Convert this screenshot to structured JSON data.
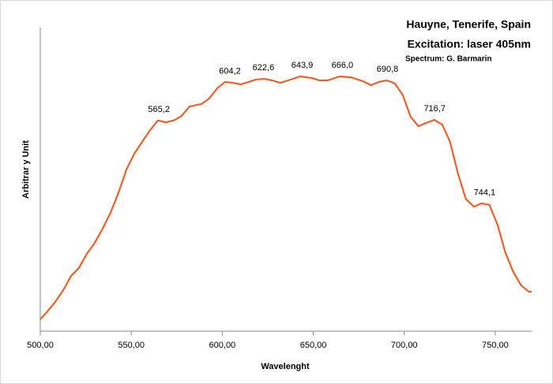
{
  "chart_data": {
    "type": "line",
    "title": "Hauyne, Tenerife, Spain",
    "subtitle": "Excitation: laser 405nm",
    "credit": "Spectrum:  G. Barmarin",
    "xlabel": "Wavelenght",
    "ylabel": "Arbitrar y Unit",
    "color": "#e8622a",
    "x": [
      500,
      503.9,
      508.2,
      512.6,
      516.9,
      521.2,
      525.6,
      529.9,
      534.3,
      538.6,
      542.9,
      547.3,
      551.6,
      555.9,
      560.3,
      564.6,
      568.9,
      573.3,
      577.6,
      582.0,
      588.5,
      592.8,
      597.2,
      601.5,
      605.8,
      610.2,
      614.5,
      618.8,
      623.2,
      627.5,
      631.9,
      636.2,
      642.7,
      649.2,
      653.5,
      657.9,
      664.4,
      670.9,
      677.4,
      681.7,
      686.1,
      690.4,
      694.8,
      699.1,
      703.5,
      707.8,
      712.1,
      716.5,
      720.8,
      725.2,
      729.5,
      733.8,
      738.2,
      742.5,
      746.8,
      751.2,
      755.5,
      759.9,
      764.2,
      768.5,
      770
    ],
    "values": [
      3.9,
      6.5,
      9.6,
      13.5,
      18.2,
      20.8,
      25.5,
      29.1,
      33.8,
      39.0,
      45.5,
      53.2,
      58.4,
      62.3,
      66.2,
      69.4,
      68.8,
      69.4,
      70.9,
      74.0,
      74.8,
      76.6,
      80.0,
      82.1,
      81.8,
      81.3,
      82.1,
      82.9,
      83.1,
      82.6,
      81.8,
      82.6,
      83.9,
      83.4,
      82.6,
      82.6,
      83.9,
      83.6,
      82.3,
      81.0,
      82.1,
      82.6,
      81.6,
      77.9,
      70.6,
      67.5,
      68.6,
      69.6,
      68.1,
      62.3,
      51.9,
      43.6,
      41.0,
      42.1,
      41.6,
      35.1,
      26.0,
      19.5,
      15.1,
      13.0,
      13.0
    ],
    "xlim": [
      500,
      770
    ],
    "ylim": [
      0,
      100
    ],
    "xticks": [
      {
        "value": 500,
        "label": "500,00"
      },
      {
        "value": 550,
        "label": "550,00"
      },
      {
        "value": 600,
        "label": "600,00"
      },
      {
        "value": 650,
        "label": "650,00"
      },
      {
        "value": 700,
        "label": "700,00"
      },
      {
        "value": 750,
        "label": "750,00"
      }
    ],
    "annotations": [
      {
        "value": 565.2,
        "label": "565,2"
      },
      {
        "value": 604.2,
        "label": "604,2"
      },
      {
        "value": 622.6,
        "label": "622,6"
      },
      {
        "value": 643.9,
        "label": "643,9"
      },
      {
        "value": 666.0,
        "label": "666,0"
      },
      {
        "value": 690.8,
        "label": "690,8"
      },
      {
        "value": 716.7,
        "label": "716,7"
      },
      {
        "value": 744.1,
        "label": "744,1"
      }
    ]
  }
}
